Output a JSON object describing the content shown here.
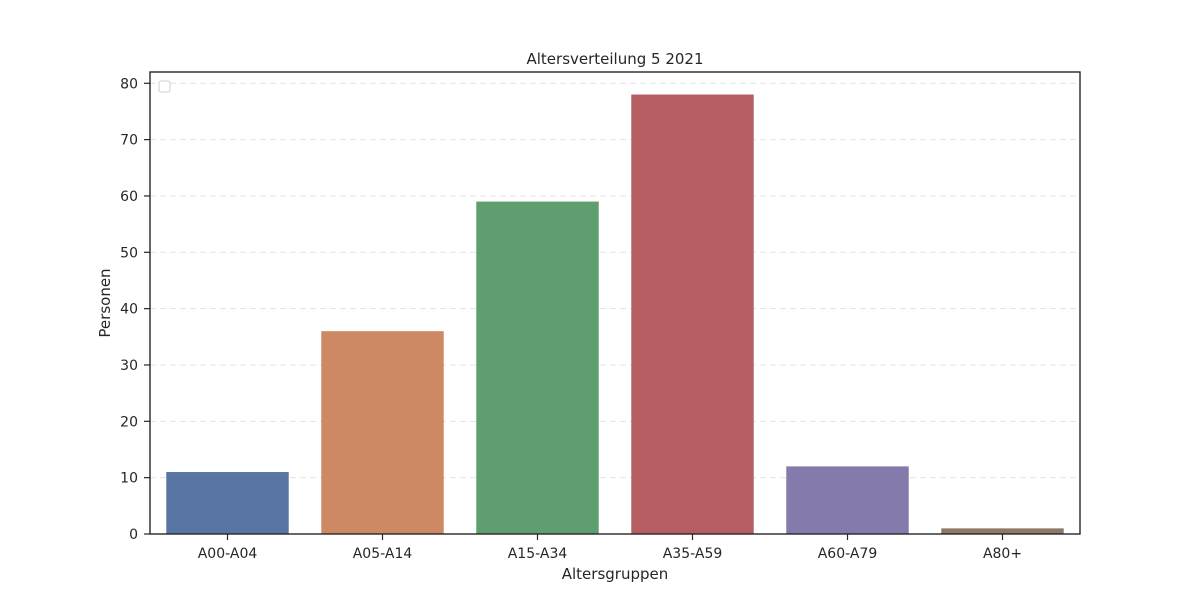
{
  "chart_data": {
    "type": "bar",
    "title": "Altersverteilung 5 2021",
    "xlabel": "Altersgruppen",
    "ylabel": "Personen",
    "categories": [
      "A00-A04",
      "A05-A14",
      "A15-A34",
      "A35-A59",
      "A60-A79",
      "A80+"
    ],
    "values": [
      11,
      36,
      59,
      78,
      12,
      1
    ],
    "colors": [
      "#5875a4",
      "#cc8963",
      "#5f9e6e",
      "#b55d60",
      "#857aab",
      "#8d7866"
    ],
    "ylim": [
      0,
      82
    ],
    "yticks": [
      0,
      10,
      20,
      30,
      40,
      50,
      60,
      70,
      80
    ],
    "grid": true,
    "legend": {
      "position": "top-left",
      "entries": []
    }
  }
}
